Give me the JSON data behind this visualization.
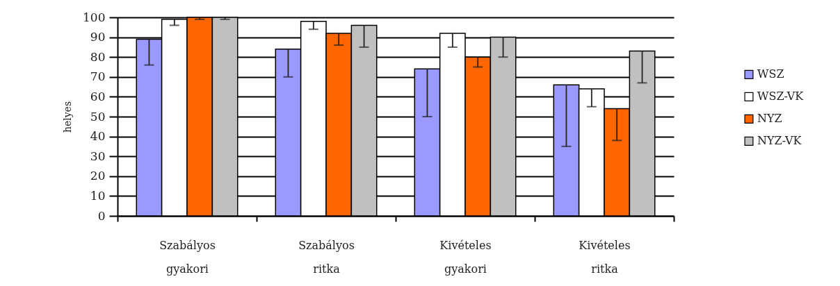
{
  "chart_data": {
    "type": "bar",
    "ylabel": "helyes",
    "categories": [
      "Szabályos gyakori",
      "Szabályos ritka",
      "Kivételes gyakori",
      "Kivételes ritka"
    ],
    "series": [
      {
        "name": "WSZ",
        "color": "#9999ff",
        "values": [
          89,
          84,
          74,
          66
        ],
        "errors": [
          [
            76,
            89
          ],
          [
            70,
            84
          ],
          [
            50,
            74
          ],
          [
            35,
            66
          ]
        ]
      },
      {
        "name": "WSZ-VK",
        "color": "#ffffff",
        "values": [
          99,
          98,
          92,
          64
        ],
        "errors": [
          [
            96,
            99
          ],
          [
            94,
            98
          ],
          [
            85,
            92
          ],
          [
            55,
            64
          ]
        ]
      },
      {
        "name": "NYZ",
        "color": "#ff6600",
        "values": [
          100,
          92,
          80,
          54
        ],
        "errors": [
          [
            99,
            100
          ],
          [
            86,
            92
          ],
          [
            75,
            80
          ],
          [
            38,
            54
          ]
        ]
      },
      {
        "name": "NYZ-VK",
        "color": "#c0c0c0",
        "values": [
          100,
          96,
          90,
          83
        ],
        "errors": [
          [
            99,
            100
          ],
          [
            85,
            96
          ],
          [
            80,
            90
          ],
          [
            67,
            83
          ]
        ]
      }
    ],
    "ylim": [
      0,
      100
    ],
    "yticks": [
      0,
      10,
      20,
      30,
      40,
      50,
      60,
      70,
      80,
      90,
      100
    ],
    "grid": "y",
    "legend": "right"
  }
}
